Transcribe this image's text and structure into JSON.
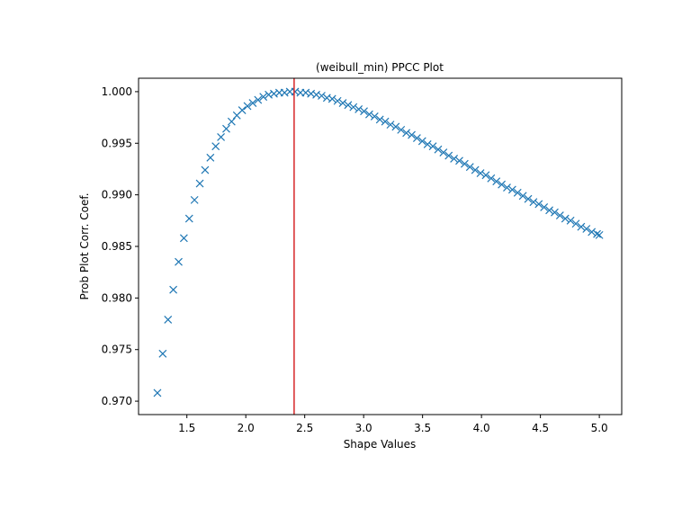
{
  "chart_data": {
    "type": "scatter",
    "title": "(weibull_min) PPCC Plot",
    "xlabel": "Shape Values",
    "ylabel": "Prob Plot Corr. Coef.",
    "xlim": [
      1.09,
      5.19
    ],
    "ylim": [
      0.9687,
      1.0013
    ],
    "xticks": [
      1.5,
      2.0,
      2.5,
      3.0,
      3.5,
      4.0,
      4.5,
      5.0
    ],
    "xtick_labels": [
      "1.5",
      "2.0",
      "2.5",
      "3.0",
      "3.5",
      "4.0",
      "4.5",
      "5.0"
    ],
    "yticks": [
      0.97,
      0.975,
      0.98,
      0.985,
      0.99,
      0.995,
      1.0
    ],
    "ytick_labels": [
      "0.970",
      "0.975",
      "0.980",
      "0.985",
      "0.990",
      "0.995",
      "1.000"
    ],
    "marker": "x",
    "marker_color": "#1f77b4",
    "vline": {
      "x": 2.41,
      "color": "#d62728"
    },
    "grid": false,
    "series": [
      {
        "x": [
          1.25,
          1.2949,
          1.3399,
          1.3848,
          1.4298,
          1.4747,
          1.5197,
          1.5646,
          1.6096,
          1.6545,
          1.6995,
          1.7444,
          1.7893,
          1.8343,
          1.8792,
          1.9242,
          1.9691,
          2.0141,
          2.059,
          2.104,
          2.1489,
          2.1939,
          2.2388,
          2.2837,
          2.3287,
          2.3736,
          2.4186,
          2.4635,
          2.5085,
          2.5534,
          2.5984,
          2.6433,
          2.6883,
          2.7332,
          2.7781,
          2.8231,
          2.868,
          2.913,
          2.9579,
          3.0029,
          3.0478,
          3.0928,
          3.1377,
          3.1826,
          3.2276,
          3.2725,
          3.3175,
          3.3624,
          3.4074,
          3.4523,
          3.4973,
          3.5422,
          3.5872,
          3.6321,
          3.677,
          3.722,
          3.7669,
          3.8119,
          3.8568,
          3.9018,
          3.9467,
          3.9917,
          4.0366,
          4.0816,
          4.1265,
          4.1714,
          4.2164,
          4.2613,
          4.3063,
          4.3512,
          4.3962,
          4.4411,
          4.4861,
          4.531,
          4.576,
          4.6209,
          4.6658,
          4.7108,
          4.7557,
          4.8007,
          4.8456,
          4.8906,
          4.9355,
          4.9805,
          5.0
        ],
        "y": [
          0.9708,
          0.9746,
          0.9779,
          0.9808,
          0.9835,
          0.9858,
          0.9877,
          0.9895,
          0.9911,
          0.9924,
          0.9936,
          0.9947,
          0.9956,
          0.9964,
          0.9971,
          0.9977,
          0.9982,
          0.9986,
          0.9989,
          0.9992,
          0.9995,
          0.9997,
          0.9998,
          0.9999,
          0.9999,
          1.0,
          1.0,
          0.9999,
          0.9999,
          0.9998,
          0.9997,
          0.9996,
          0.9994,
          0.9993,
          0.9991,
          0.9989,
          0.9987,
          0.9985,
          0.9983,
          0.9981,
          0.9978,
          0.9976,
          0.9973,
          0.9971,
          0.9968,
          0.9966,
          0.9963,
          0.996,
          0.9958,
          0.9955,
          0.9952,
          0.9949,
          0.9947,
          0.9944,
          0.9941,
          0.9938,
          0.9935,
          0.9933,
          0.993,
          0.9927,
          0.9924,
          0.9921,
          0.9919,
          0.9916,
          0.9913,
          0.991,
          0.9907,
          0.9905,
          0.9902,
          0.9899,
          0.9896,
          0.9893,
          0.9891,
          0.9888,
          0.9885,
          0.9883,
          0.988,
          0.9877,
          0.9875,
          0.9872,
          0.9869,
          0.9867,
          0.9864,
          0.9862,
          0.9861
        ]
      }
    ]
  }
}
